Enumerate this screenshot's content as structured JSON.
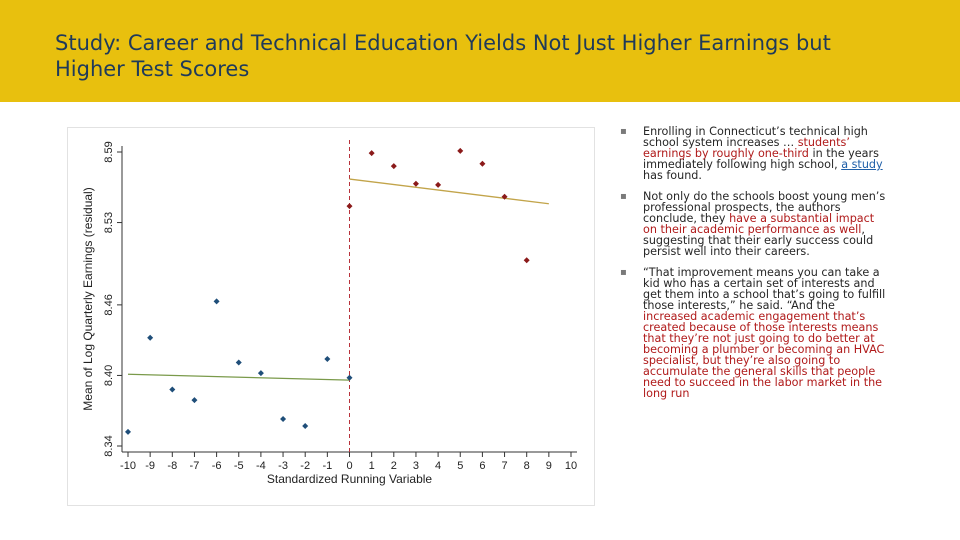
{
  "slide": {
    "title": "Study: Career and Technical Education Yields Not Just Higher Earnings but Higher Test Scores",
    "colors": {
      "title_bar": "#e8c00e",
      "title_text": "#1f3a5a",
      "emphasis": "#b01a1a",
      "link": "#1f5fa8"
    }
  },
  "bullets": [
    {
      "icon": "bullet-dot",
      "parts": [
        {
          "text": "Enrolling in Connecticut’s technical high school system increases … "
        },
        {
          "text": "students’ earnings by roughly one-third",
          "style": "red"
        },
        {
          "text": " in the years immediately following high school, "
        },
        {
          "text": "a study",
          "style": "link"
        },
        {
          "text": " has found."
        }
      ]
    },
    {
      "icon": "bullet-dot",
      "parts": [
        {
          "text": "Not only do the schools boost young men’s professional prospects, the authors conclude, they "
        },
        {
          "text": "have a substantial impact on their academic performance as well",
          "style": "red"
        },
        {
          "text": ", suggesting that their early success could persist well into their careers."
        }
      ]
    },
    {
      "icon": "bullet-dot",
      "parts": [
        {
          "text": "“That improvement means you can take a kid who has a certain set of interests and get them into a school that’s going to fulfill those interests,” he said. “And the "
        },
        {
          "text": "increased academic engagement that’s created because of those interests means that they’re not just going to do better at becoming a plumber or becoming an HVAC specialist, but they’re also going to accumulate the general skills that people need to succeed in the labor market in the long run",
          "style": "red"
        }
      ]
    }
  ],
  "chart_data": {
    "type": "scatter",
    "xlabel": "Standardized Running Variable",
    "ylabel": "Mean of Log Quarterly Earnings (residual)",
    "xlim": [
      -10,
      10
    ],
    "ylim": [
      8.34,
      8.59
    ],
    "x_ticks": [
      -10,
      -9,
      -8,
      -7,
      -6,
      -5,
      -4,
      -3,
      -2,
      -1,
      0,
      1,
      2,
      3,
      4,
      5,
      6,
      7,
      8,
      9,
      10
    ],
    "y_ticks": [
      "8.34",
      "8.40",
      "8.46",
      "8.53",
      "8.59"
    ],
    "y_tick_values": [
      8.34,
      8.4,
      8.46,
      8.53,
      8.59
    ],
    "cutoff": 0,
    "grid": false,
    "series": [
      {
        "side": "left",
        "color": "#1f4e79",
        "marker": "diamond",
        "points": [
          [
            -10,
            8.352
          ],
          [
            -9,
            8.432
          ],
          [
            -8,
            8.388
          ],
          [
            -7,
            8.379
          ],
          [
            -6,
            8.463
          ],
          [
            -5,
            8.411
          ],
          [
            -4,
            8.402
          ],
          [
            -3,
            8.363
          ],
          [
            -2,
            8.357
          ],
          [
            -1,
            8.414
          ],
          [
            0,
            8.398
          ]
        ],
        "fit": [
          [
            -10,
            8.401
          ],
          [
            0,
            8.396
          ]
        ],
        "fit_color": "#7a9a4a"
      },
      {
        "side": "right",
        "color": "#8b1a1a",
        "marker": "diamond",
        "points": [
          [
            0,
            8.544
          ],
          [
            1,
            8.589
          ],
          [
            2,
            8.578
          ],
          [
            3,
            8.563
          ],
          [
            4,
            8.562
          ],
          [
            5,
            8.591
          ],
          [
            6,
            8.58
          ],
          [
            7,
            8.552
          ],
          [
            8,
            8.498
          ]
        ],
        "fit": [
          [
            0,
            8.567
          ],
          [
            9,
            8.546
          ]
        ],
        "fit_color": "#c2a44a"
      }
    ]
  }
}
